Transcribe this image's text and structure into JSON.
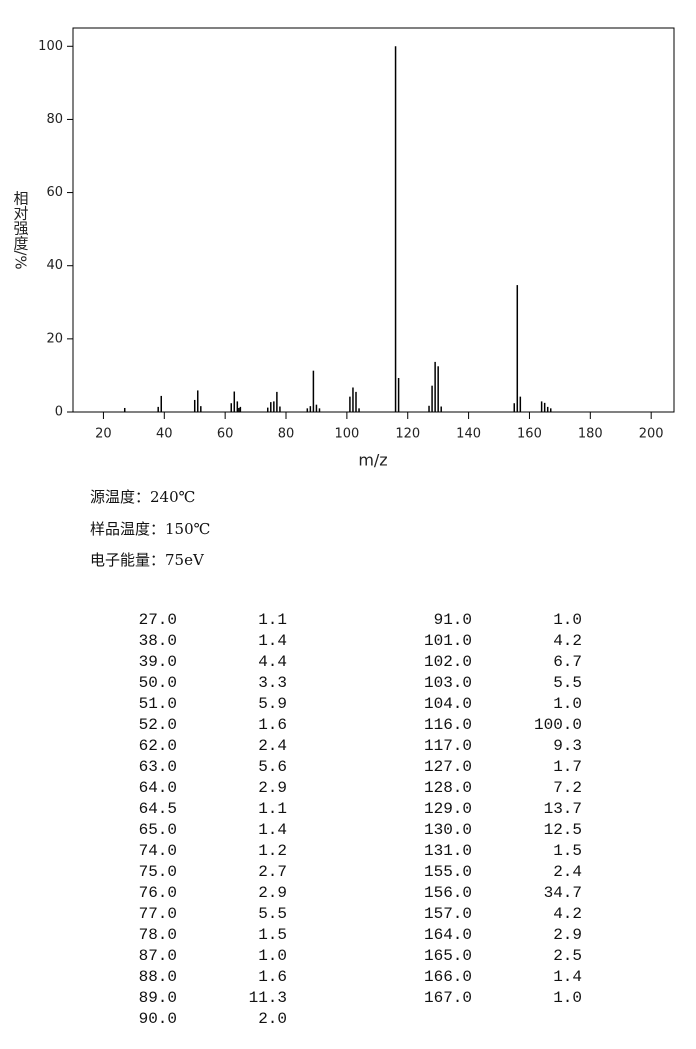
{
  "chart_data": {
    "type": "bar",
    "xlabel": "m/z",
    "ylabel": "相对强度/%",
    "color": "#000000",
    "x": [
      27,
      38,
      39,
      50,
      51,
      52,
      62,
      63,
      64,
      64.5,
      65,
      74,
      75,
      76,
      77,
      78,
      87,
      88,
      89,
      90,
      91,
      101,
      102,
      103,
      104,
      116,
      117,
      127,
      128,
      129,
      130,
      131,
      155,
      156,
      157,
      164,
      165,
      166,
      167
    ],
    "values": [
      1.1,
      1.4,
      4.4,
      3.3,
      5.9,
      1.6,
      2.4,
      5.6,
      2.9,
      1.1,
      1.4,
      1.2,
      2.7,
      2.9,
      5.5,
      1.5,
      1.0,
      1.6,
      11.3,
      2.0,
      1.0,
      4.2,
      6.7,
      5.5,
      1.0,
      100.0,
      9.3,
      1.7,
      7.2,
      13.7,
      12.5,
      1.5,
      2.4,
      34.7,
      4.2,
      2.9,
      2.5,
      1.4,
      1.0
    ],
    "xlim": [
      10,
      207.5
    ],
    "ylim": [
      0,
      105
    ],
    "xticks": [
      20,
      40,
      60,
      80,
      100,
      120,
      140,
      160,
      180,
      200
    ],
    "yticks": [
      0,
      20,
      40,
      60,
      80,
      100
    ]
  },
  "info": [
    "源温度：240℃",
    "样品温度：150℃",
    "电子能量：75eV"
  ],
  "table": {
    "rows": [
      [
        "27.0",
        "1.1"
      ],
      [
        "38.0",
        "1.4"
      ],
      [
        "39.0",
        "4.4"
      ],
      [
        "50.0",
        "3.3"
      ],
      [
        "51.0",
        "5.9"
      ],
      [
        "52.0",
        "1.6"
      ],
      [
        "62.0",
        "2.4"
      ],
      [
        "63.0",
        "5.6"
      ],
      [
        "64.0",
        "2.9"
      ],
      [
        "64.5",
        "1.1"
      ],
      [
        "65.0",
        "1.4"
      ],
      [
        "74.0",
        "1.2"
      ],
      [
        "75.0",
        "2.7"
      ],
      [
        "76.0",
        "2.9"
      ],
      [
        "77.0",
        "5.5"
      ],
      [
        "78.0",
        "1.5"
      ],
      [
        "87.0",
        "1.0"
      ],
      [
        "88.0",
        "1.6"
      ],
      [
        "89.0",
        "11.3"
      ],
      [
        "90.0",
        "2.0"
      ],
      [
        "91.0",
        "1.0"
      ],
      [
        "101.0",
        "4.2"
      ],
      [
        "102.0",
        "6.7"
      ],
      [
        "103.0",
        "5.5"
      ],
      [
        "104.0",
        "1.0"
      ],
      [
        "116.0",
        "100.0"
      ],
      [
        "117.0",
        "9.3"
      ],
      [
        "127.0",
        "1.7"
      ],
      [
        "128.0",
        "7.2"
      ],
      [
        "129.0",
        "13.7"
      ],
      [
        "130.0",
        "12.5"
      ],
      [
        "131.0",
        "1.5"
      ],
      [
        "155.0",
        "2.4"
      ],
      [
        "156.0",
        "34.7"
      ],
      [
        "157.0",
        "4.2"
      ],
      [
        "164.0",
        "2.9"
      ],
      [
        "165.0",
        "2.5"
      ],
      [
        "166.0",
        "1.4"
      ],
      [
        "167.0",
        "1.0"
      ]
    ]
  }
}
